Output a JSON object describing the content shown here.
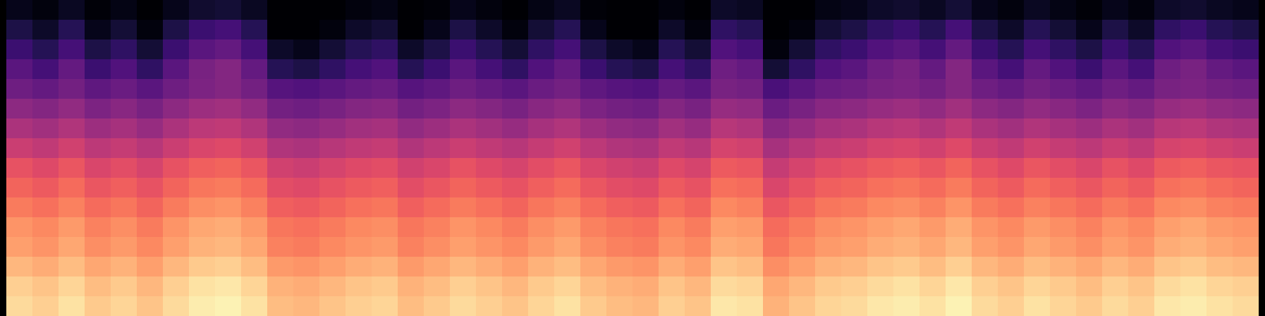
{
  "chart_data": {
    "type": "heatmap",
    "color": "magma",
    "tick_labels": false,
    "zlim": [
      -80,
      0
    ],
    "cells": [
      [
        -76,
        -78,
        -75,
        -79,
        -77,
        -80,
        -76,
        -73,
        -72,
        -75,
        -80,
        -80,
        -80,
        -78,
        -77,
        -80,
        -79,
        -76,
        -78,
        -80,
        -77,
        -75,
        -79,
        -80,
        -80,
        -78,
        -80,
        -74,
        -75,
        -80,
        -80,
        -77,
        -76,
        -74,
        -73,
        -75,
        -72,
        -76,
        -78,
        -75,
        -77,
        -79,
        -76,
        -78,
        -74,
        -73,
        -75,
        -76
      ],
      [
        -70,
        -74,
        -68,
        -76,
        -72,
        -78,
        -70,
        -64,
        -62,
        -68,
        -80,
        -80,
        -78,
        -74,
        -72,
        -80,
        -76,
        -70,
        -74,
        -78,
        -72,
        -68,
        -76,
        -80,
        -80,
        -74,
        -78,
        -66,
        -68,
        -80,
        -78,
        -72,
        -70,
        -66,
        -64,
        -68,
        -62,
        -70,
        -74,
        -68,
        -72,
        -76,
        -70,
        -74,
        -66,
        -64,
        -68,
        -70
      ],
      [
        -64,
        -68,
        -62,
        -70,
        -66,
        -72,
        -64,
        -58,
        -56,
        -62,
        -74,
        -76,
        -72,
        -68,
        -66,
        -74,
        -70,
        -64,
        -68,
        -72,
        -66,
        -62,
        -70,
        -74,
        -76,
        -68,
        -72,
        -60,
        -62,
        -78,
        -72,
        -66,
        -64,
        -60,
        -58,
        -62,
        -56,
        -64,
        -68,
        -62,
        -66,
        -70,
        -64,
        -68,
        -60,
        -58,
        -62,
        -64
      ],
      [
        -58,
        -62,
        -56,
        -64,
        -60,
        -66,
        -58,
        -52,
        -50,
        -56,
        -68,
        -70,
        -66,
        -62,
        -60,
        -68,
        -64,
        -58,
        -62,
        -66,
        -60,
        -56,
        -64,
        -68,
        -70,
        -62,
        -66,
        -54,
        -56,
        -72,
        -66,
        -60,
        -58,
        -54,
        -52,
        -56,
        -50,
        -58,
        -62,
        -56,
        -60,
        -64,
        -58,
        -62,
        -54,
        -52,
        -56,
        -58
      ],
      [
        -54,
        -56,
        -53,
        -57,
        -55,
        -58,
        -54,
        -51,
        -50,
        -53,
        -59,
        -60,
        -58,
        -56,
        -55,
        -59,
        -57,
        -54,
        -56,
        -58,
        -55,
        -53,
        -57,
        -59,
        -60,
        -56,
        -58,
        -52,
        -53,
        -61,
        -58,
        -55,
        -54,
        -52,
        -51,
        -53,
        -50,
        -54,
        -56,
        -53,
        -55,
        -57,
        -54,
        -56,
        -52,
        -51,
        -53,
        -54
      ],
      [
        -48,
        -50,
        -47,
        -51,
        -49,
        -52,
        -48,
        -45,
        -44,
        -47,
        -53,
        -54,
        -52,
        -50,
        -49,
        -53,
        -51,
        -48,
        -50,
        -52,
        -49,
        -47,
        -51,
        -53,
        -54,
        -50,
        -52,
        -46,
        -47,
        -55,
        -52,
        -49,
        -48,
        -46,
        -45,
        -47,
        -44,
        -48,
        -50,
        -47,
        -49,
        -51,
        -48,
        -50,
        -46,
        -45,
        -47,
        -48
      ],
      [
        -42,
        -44,
        -41,
        -45,
        -43,
        -46,
        -42,
        -39,
        -38,
        -41,
        -47,
        -48,
        -46,
        -44,
        -43,
        -47,
        -45,
        -42,
        -44,
        -46,
        -43,
        -41,
        -45,
        -47,
        -48,
        -44,
        -46,
        -40,
        -41,
        -49,
        -46,
        -43,
        -42,
        -40,
        -39,
        -41,
        -38,
        -42,
        -44,
        -41,
        -43,
        -45,
        -42,
        -44,
        -40,
        -39,
        -41,
        -42
      ],
      [
        -36,
        -38,
        -35,
        -39,
        -37,
        -40,
        -36,
        -33,
        -32,
        -35,
        -41,
        -42,
        -40,
        -38,
        -37,
        -41,
        -39,
        -36,
        -38,
        -40,
        -37,
        -35,
        -39,
        -41,
        -42,
        -38,
        -40,
        -34,
        -35,
        -43,
        -40,
        -37,
        -36,
        -34,
        -33,
        -35,
        -32,
        -36,
        -38,
        -35,
        -37,
        -39,
        -36,
        -38,
        -34,
        -33,
        -35,
        -36
      ],
      [
        -30,
        -32,
        -29,
        -33,
        -31,
        -34,
        -30,
        -27,
        -26,
        -29,
        -35,
        -36,
        -34,
        -32,
        -31,
        -35,
        -33,
        -30,
        -32,
        -34,
        -31,
        -29,
        -33,
        -35,
        -36,
        -32,
        -34,
        -28,
        -29,
        -37,
        -34,
        -31,
        -30,
        -28,
        -27,
        -29,
        -26,
        -30,
        -32,
        -29,
        -31,
        -33,
        -30,
        -32,
        -28,
        -27,
        -29,
        -30
      ],
      [
        -26,
        -28,
        -25,
        -29,
        -27,
        -30,
        -26,
        -23,
        -22,
        -25,
        -31,
        -32,
        -30,
        -28,
        -27,
        -31,
        -29,
        -26,
        -28,
        -30,
        -27,
        -25,
        -29,
        -31,
        -32,
        -28,
        -30,
        -24,
        -25,
        -33,
        -30,
        -27,
        -26,
        -24,
        -23,
        -25,
        -22,
        -26,
        -28,
        -25,
        -27,
        -29,
        -26,
        -28,
        -24,
        -23,
        -25,
        -26
      ],
      [
        -22,
        -24,
        -21,
        -25,
        -23,
        -26,
        -22,
        -19,
        -18,
        -21,
        -27,
        -28,
        -26,
        -24,
        -23,
        -27,
        -25,
        -22,
        -24,
        -26,
        -23,
        -21,
        -25,
        -27,
        -28,
        -24,
        -26,
        -20,
        -21,
        -29,
        -26,
        -23,
        -22,
        -20,
        -19,
        -21,
        -18,
        -22,
        -24,
        -21,
        -23,
        -25,
        -22,
        -24,
        -20,
        -19,
        -21,
        -22
      ],
      [
        -18,
        -20,
        -17,
        -21,
        -19,
        -22,
        -18,
        -15,
        -14,
        -17,
        -23,
        -24,
        -22,
        -20,
        -19,
        -23,
        -21,
        -18,
        -20,
        -22,
        -19,
        -17,
        -21,
        -23,
        -24,
        -20,
        -22,
        -16,
        -17,
        -25,
        -22,
        -19,
        -18,
        -16,
        -15,
        -17,
        -14,
        -18,
        -20,
        -17,
        -19,
        -21,
        -18,
        -20,
        -16,
        -15,
        -17,
        -18
      ],
      [
        -16,
        -18,
        -15,
        -19,
        -17,
        -20,
        -16,
        -13,
        -12,
        -15,
        -21,
        -22,
        -20,
        -18,
        -17,
        -21,
        -19,
        -16,
        -18,
        -20,
        -17,
        -15,
        -19,
        -21,
        -22,
        -18,
        -20,
        -14,
        -15,
        -23,
        -20,
        -17,
        -16,
        -14,
        -13,
        -15,
        -12,
        -16,
        -18,
        -15,
        -17,
        -19,
        -16,
        -18,
        -14,
        -13,
        -15,
        -16
      ],
      [
        -12,
        -14,
        -11,
        -15,
        -13,
        -16,
        -12,
        -9,
        -8,
        -11,
        -17,
        -18,
        -16,
        -14,
        -13,
        -17,
        -15,
        -12,
        -14,
        -16,
        -13,
        -11,
        -15,
        -17,
        -18,
        -14,
        -16,
        -10,
        -11,
        -19,
        -16,
        -13,
        -12,
        -10,
        -9,
        -11,
        -8,
        -12,
        -14,
        -11,
        -13,
        -15,
        -12,
        -14,
        -10,
        -9,
        -11,
        -12
      ],
      [
        -8,
        -10,
        -7,
        -11,
        -9,
        -12,
        -8,
        -5,
        -4,
        -7,
        -13,
        -14,
        -12,
        -10,
        -9,
        -13,
        -11,
        -8,
        -10,
        -12,
        -9,
        -7,
        -11,
        -13,
        -14,
        -10,
        -12,
        -6,
        -7,
        -15,
        -12,
        -9,
        -8,
        -6,
        -5,
        -7,
        -4,
        -8,
        -10,
        -7,
        -9,
        -11,
        -8,
        -10,
        -6,
        -5,
        -7,
        -8
      ],
      [
        -6,
        -8,
        -5,
        -9,
        -7,
        -10,
        -6,
        -3,
        -2,
        -5,
        -11,
        -12,
        -10,
        -8,
        -7,
        -11,
        -9,
        -6,
        -8,
        -10,
        -7,
        -5,
        -9,
        -11,
        -12,
        -8,
        -10,
        -4,
        -5,
        -13,
        -10,
        -7,
        -6,
        -4,
        -3,
        -5,
        -2,
        -6,
        -8,
        -5,
        -7,
        -9,
        -6,
        -8,
        -4,
        -3,
        -5,
        -6
      ]
    ]
  }
}
